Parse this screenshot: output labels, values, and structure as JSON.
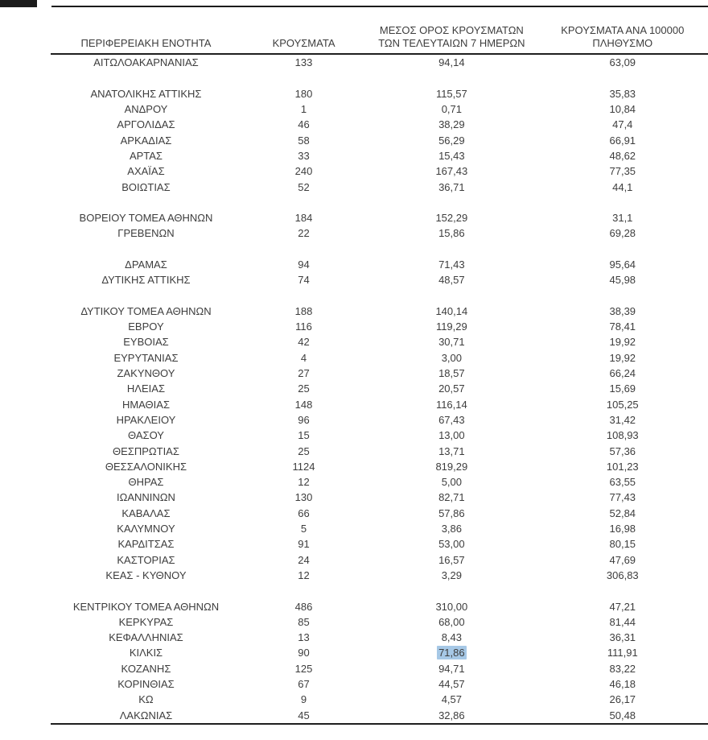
{
  "page": {
    "background": "#ffffff",
    "text_color": "#3d3d3d",
    "line_color": "#1f1f1f",
    "highlight_color": "#a6c8e6"
  },
  "table": {
    "headers": {
      "region": "ΠΕΡΙΦΕΡΕΙΑΚΗ ΕΝΟΤΗΤΑ",
      "cases": "ΚΡΟΥΣΜΑΤΑ",
      "avg7_line1": "ΜΕΣΟΣ ΟΡΟΣ ΚΡΟΥΣΜΑΤΩΝ",
      "avg7_line2": "ΤΩΝ ΤΕΛΕΥΤΑΙΩΝ 7 ΗΜΕΡΩΝ",
      "per100k_line1": "ΚΡΟΥΣΜΑΤΑ ΑΝΑ 100000",
      "per100k_line2": "ΠΛΗΘΥΣΜΟ"
    },
    "rows": [
      {
        "region": "ΑΙΤΩΛΟΑΚΑΡΝΑΝΙΑΣ",
        "cases": "133",
        "avg7": "94,14",
        "per100k": "63,09"
      },
      {
        "spacer": true
      },
      {
        "region": "ΑΝΑΤΟΛΙΚΗΣ ΑΤΤΙΚΗΣ",
        "cases": "180",
        "avg7": "115,57",
        "per100k": "35,83"
      },
      {
        "region": "ΑΝΔΡΟΥ",
        "cases": "1",
        "avg7": "0,71",
        "per100k": "10,84"
      },
      {
        "region": "ΑΡΓΟΛΙΔΑΣ",
        "cases": "46",
        "avg7": "38,29",
        "per100k": "47,4"
      },
      {
        "region": "ΑΡΚΑΔΙΑΣ",
        "cases": "58",
        "avg7": "56,29",
        "per100k": "66,91"
      },
      {
        "region": "ΑΡΤΑΣ",
        "cases": "33",
        "avg7": "15,43",
        "per100k": "48,62"
      },
      {
        "region": "ΑΧΑΪΑΣ",
        "cases": "240",
        "avg7": "167,43",
        "per100k": "77,35"
      },
      {
        "region": "ΒΟΙΩΤΙΑΣ",
        "cases": "52",
        "avg7": "36,71",
        "per100k": "44,1"
      },
      {
        "spacer": true
      },
      {
        "region": "ΒΟΡΕΙΟΥ ΤΟΜΕΑ ΑΘΗΝΩΝ",
        "cases": "184",
        "avg7": "152,29",
        "per100k": "31,1"
      },
      {
        "region": "ΓΡΕΒΕΝΩΝ",
        "cases": "22",
        "avg7": "15,86",
        "per100k": "69,28"
      },
      {
        "spacer": true
      },
      {
        "region": "ΔΡΑΜΑΣ",
        "cases": "94",
        "avg7": "71,43",
        "per100k": "95,64"
      },
      {
        "region": "ΔΥΤΙΚΗΣ ΑΤΤΙΚΗΣ",
        "cases": "74",
        "avg7": "48,57",
        "per100k": "45,98"
      },
      {
        "spacer": true
      },
      {
        "region": "ΔΥΤΙΚΟΥ ΤΟΜΕΑ ΑΘΗΝΩΝ",
        "cases": "188",
        "avg7": "140,14",
        "per100k": "38,39"
      },
      {
        "region": "ΕΒΡΟΥ",
        "cases": "116",
        "avg7": "119,29",
        "per100k": "78,41"
      },
      {
        "region": "ΕΥΒΟΙΑΣ",
        "cases": "42",
        "avg7": "30,71",
        "per100k": "19,92"
      },
      {
        "region": "ΕΥΡΥΤΑΝΙΑΣ",
        "cases": "4",
        "avg7": "3,00",
        "per100k": "19,92"
      },
      {
        "region": "ΖΑΚΥΝΘΟΥ",
        "cases": "27",
        "avg7": "18,57",
        "per100k": "66,24"
      },
      {
        "region": "ΗΛΕΙΑΣ",
        "cases": "25",
        "avg7": "20,57",
        "per100k": "15,69"
      },
      {
        "region": "ΗΜΑΘΙΑΣ",
        "cases": "148",
        "avg7": "116,14",
        "per100k": "105,25"
      },
      {
        "region": "ΗΡΑΚΛΕΙΟΥ",
        "cases": "96",
        "avg7": "67,43",
        "per100k": "31,42"
      },
      {
        "region": "ΘΑΣΟΥ",
        "cases": "15",
        "avg7": "13,00",
        "per100k": "108,93"
      },
      {
        "region": "ΘΕΣΠΡΩΤΙΑΣ",
        "cases": "25",
        "avg7": "13,71",
        "per100k": "57,36"
      },
      {
        "region": "ΘΕΣΣΑΛΟΝΙΚΗΣ",
        "cases": "1124",
        "avg7": "819,29",
        "per100k": "101,23"
      },
      {
        "region": "ΘΗΡΑΣ",
        "cases": "12",
        "avg7": "5,00",
        "per100k": "63,55"
      },
      {
        "region": "ΙΩΑΝΝΙΝΩΝ",
        "cases": "130",
        "avg7": "82,71",
        "per100k": "77,43"
      },
      {
        "region": "ΚΑΒΑΛΑΣ",
        "cases": "66",
        "avg7": "57,86",
        "per100k": "52,84"
      },
      {
        "region": "ΚΑΛΥΜΝΟΥ",
        "cases": "5",
        "avg7": "3,86",
        "per100k": "16,98"
      },
      {
        "region": "ΚΑΡΔΙΤΣΑΣ",
        "cases": "91",
        "avg7": "53,00",
        "per100k": "80,15"
      },
      {
        "region": "ΚΑΣΤΟΡΙΑΣ",
        "cases": "24",
        "avg7": "16,57",
        "per100k": "47,69"
      },
      {
        "region": "ΚΕΑΣ - ΚΥΘΝΟΥ",
        "cases": "12",
        "avg7": "3,29",
        "per100k": "306,83"
      },
      {
        "spacer": true
      },
      {
        "region": "ΚΕΝΤΡΙΚΟΥ ΤΟΜΕΑ ΑΘΗΝΩΝ",
        "cases": "486",
        "avg7": "310,00",
        "per100k": "47,21"
      },
      {
        "region": "ΚΕΡΚΥΡΑΣ",
        "cases": "85",
        "avg7": "68,00",
        "per100k": "81,44"
      },
      {
        "region": "ΚΕΦΑΛΛΗΝΙΑΣ",
        "cases": "13",
        "avg7": "8,43",
        "per100k": "36,31"
      },
      {
        "region": "ΚΙΛΚΙΣ",
        "cases": "90",
        "avg7": "71,86",
        "per100k": "111,91",
        "avg7_highlighted": true
      },
      {
        "region": "ΚΟΖΑΝΗΣ",
        "cases": "125",
        "avg7": "94,71",
        "per100k": "83,22"
      },
      {
        "region": "ΚΟΡΙΝΘΙΑΣ",
        "cases": "67",
        "avg7": "44,57",
        "per100k": "46,18"
      },
      {
        "region": "ΚΩ",
        "cases": "9",
        "avg7": "4,57",
        "per100k": "26,17"
      },
      {
        "region": "ΛΑΚΩΝΙΑΣ",
        "cases": "45",
        "avg7": "32,86",
        "per100k": "50,48"
      }
    ]
  }
}
